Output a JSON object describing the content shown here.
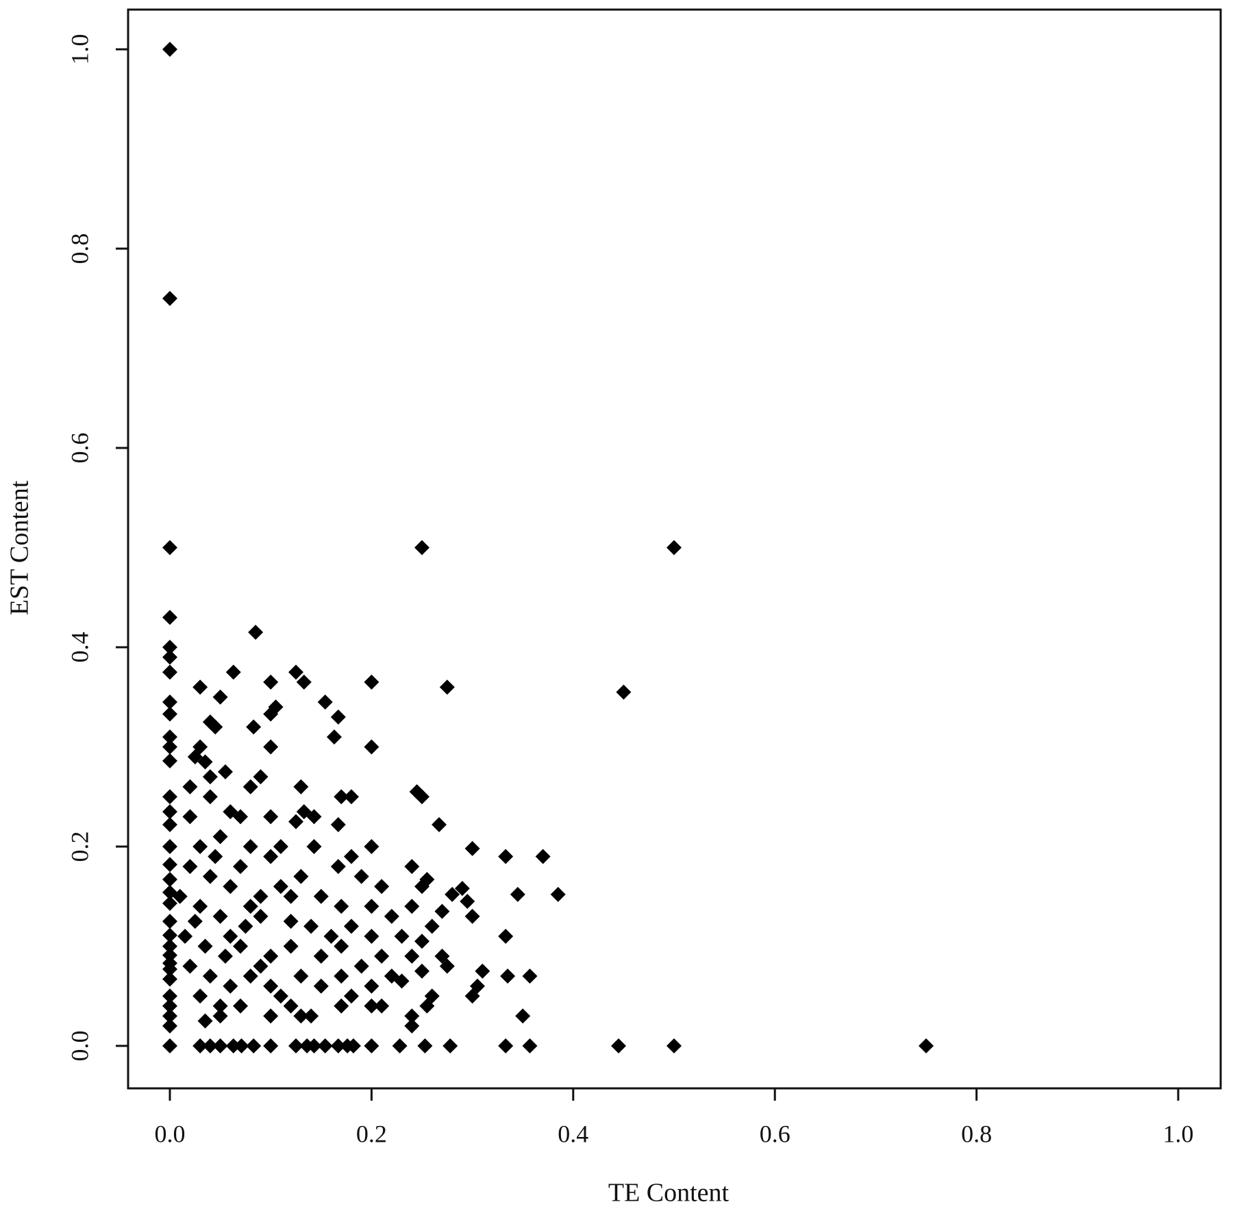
{
  "chart_data": {
    "type": "scatter",
    "x_label": "TE Content",
    "y_label": "EST Content",
    "xlim": [
      0,
      1
    ],
    "ylim": [
      0,
      1
    ],
    "xticks": [
      {
        "value": 0,
        "label": "0.0"
      },
      0.2,
      0.4,
      0.6,
      0.8,
      {
        "value": 1,
        "label": "1.0"
      }
    ],
    "yticks": [
      {
        "value": 0,
        "label": "0.0"
      },
      0.2,
      0.4,
      0.6,
      0.8,
      {
        "value": 1,
        "label": "1.0"
      }
    ],
    "color": "#000000",
    "grid": false,
    "x": [
      0,
      0,
      0,
      0,
      0,
      0,
      0,
      0,
      0,
      0,
      0,
      0,
      0,
      0,
      0,
      0,
      0,
      0,
      0,
      0,
      0,
      0,
      0,
      0,
      0,
      0,
      0,
      0,
      0,
      0,
      0,
      0,
      0.03,
      0.04,
      0.05,
      0.063,
      0.071,
      0.083,
      0.1,
      0.125,
      0.136,
      0.143,
      0.154,
      0.167,
      0.176,
      0.182,
      0.2,
      0.228,
      0.253,
      0.278,
      0.333,
      0.357,
      0.445,
      0.5,
      0.75,
      0.25,
      0.5,
      0.45,
      0.275,
      0.2,
      0.085,
      0.02,
      0.03,
      0.05,
      0.04,
      0.045,
      0.063,
      0.083,
      0.1,
      0.1,
      0.105,
      0.1,
      0.125,
      0.133,
      0.154,
      0.167,
      0.163,
      0.2,
      0.03,
      0.025,
      0.035,
      0.055,
      0.09,
      0.08,
      0.04,
      0.13,
      0.17,
      0.18,
      0.25,
      0.245,
      0.267,
      0.02,
      0.04,
      0.06,
      0.07,
      0.1,
      0.125,
      0.133,
      0.143,
      0.167,
      0.143,
      0.03,
      0.05,
      0.08,
      0.1,
      0.11,
      0.2,
      0.18,
      0.167,
      0.19,
      0.21,
      0.24,
      0.25,
      0.255,
      0.28,
      0.29,
      0.295,
      0.3,
      0.02,
      0.04,
      0.06,
      0.07,
      0.09,
      0.11,
      0.13,
      0.15,
      0.17,
      0.2,
      0.22,
      0.24,
      0.27,
      0.01,
      0.03,
      0.05,
      0.075,
      0.09,
      0.12,
      0.14,
      0.16,
      0.18,
      0.2,
      0.23,
      0.25,
      0.26,
      0.015,
      0.035,
      0.055,
      0.07,
      0.1,
      0.12,
      0.15,
      0.17,
      0.19,
      0.21,
      0.24,
      0.27,
      0.275,
      0.02,
      0.04,
      0.06,
      0.08,
      0.1,
      0.13,
      0.15,
      0.17,
      0.2,
      0.22,
      0.23,
      0.25,
      0.31,
      0.305,
      0.3,
      0.335,
      0.357,
      0.35,
      0.333,
      0.3,
      0.333,
      0.345,
      0.37,
      0.385,
      0.03,
      0.05,
      0.07,
      0.1,
      0.12,
      0.14,
      0.17,
      0.2,
      0.21,
      0.24,
      0.24,
      0.26,
      0.255,
      0.035,
      0.05,
      0.11,
      0.18,
      0.13,
      0.09,
      0.06,
      0.08,
      0.12,
      0.025,
      0.045
    ],
    "values": [
      1,
      0.75,
      0.5,
      0.43,
      0.4,
      0.39,
      0.375,
      0.345,
      0.333,
      0.31,
      0.3,
      0.286,
      0.25,
      0.235,
      0.222,
      0.2,
      0.182,
      0.167,
      0.154,
      0.143,
      0.125,
      0.111,
      0.1,
      0.091,
      0.083,
      0.077,
      0.067,
      0.05,
      0.04,
      0.03,
      0.02,
      0,
      0,
      0,
      0,
      0,
      0,
      0,
      0,
      0,
      0,
      0,
      0,
      0,
      0,
      0,
      0,
      0,
      0,
      0,
      0,
      0,
      0,
      0,
      0,
      0.5,
      0.5,
      0.355,
      0.36,
      0.365,
      0.415,
      0.26,
      0.36,
      0.35,
      0.325,
      0.32,
      0.375,
      0.32,
      0.333,
      0.3,
      0.34,
      0.365,
      0.375,
      0.365,
      0.345,
      0.33,
      0.31,
      0.3,
      0.3,
      0.29,
      0.285,
      0.275,
      0.27,
      0.26,
      0.27,
      0.26,
      0.25,
      0.25,
      0.25,
      0.255,
      0.222,
      0.23,
      0.25,
      0.235,
      0.23,
      0.23,
      0.225,
      0.235,
      0.23,
      0.222,
      0.2,
      0.2,
      0.21,
      0.2,
      0.19,
      0.2,
      0.2,
      0.19,
      0.18,
      0.17,
      0.16,
      0.18,
      0.16,
      0.167,
      0.152,
      0.158,
      0.145,
      0.13,
      0.18,
      0.17,
      0.16,
      0.18,
      0.15,
      0.16,
      0.17,
      0.15,
      0.14,
      0.14,
      0.13,
      0.14,
      0.135,
      0.15,
      0.14,
      0.13,
      0.12,
      0.13,
      0.125,
      0.12,
      0.11,
      0.12,
      0.11,
      0.11,
      0.105,
      0.12,
      0.11,
      0.1,
      0.09,
      0.1,
      0.09,
      0.1,
      0.09,
      0.1,
      0.08,
      0.09,
      0.09,
      0.09,
      0.08,
      0.08,
      0.07,
      0.06,
      0.07,
      0.06,
      0.07,
      0.06,
      0.07,
      0.06,
      0.07,
      0.065,
      0.075,
      0.075,
      0.06,
      0.05,
      0.07,
      0.07,
      0.03,
      0.11,
      0.198,
      0.19,
      0.152,
      0.19,
      0.152,
      0.05,
      0.04,
      0.04,
      0.03,
      0.04,
      0.03,
      0.04,
      0.04,
      0.04,
      0.02,
      0.03,
      0.05,
      0.04,
      0.025,
      0.03,
      0.05,
      0.05,
      0.03,
      0.08,
      0.11,
      0.14,
      0.15,
      0.125,
      0.19
    ]
  }
}
